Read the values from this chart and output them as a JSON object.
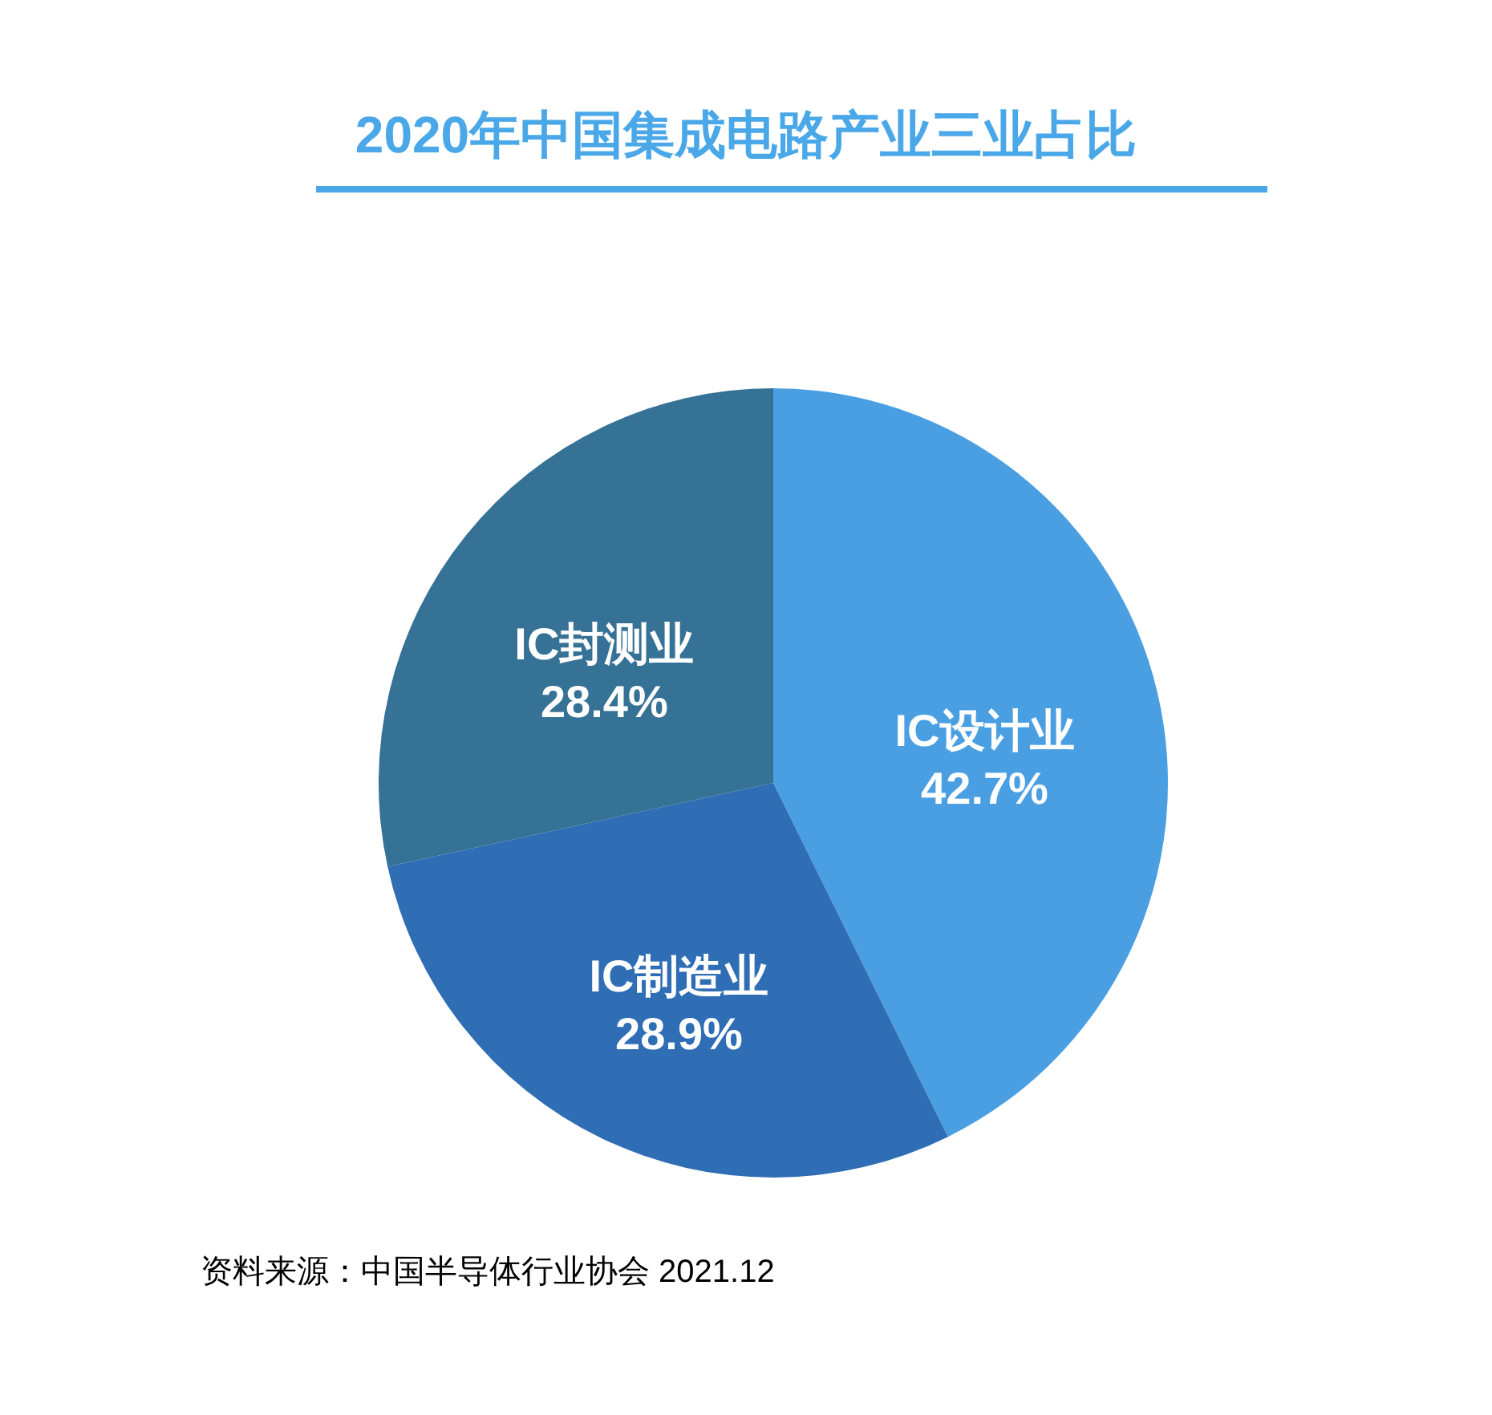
{
  "chart_data": {
    "type": "pie",
    "title": "2020年中国集成电路产业三业占比",
    "categories": [
      "IC设计业",
      "IC制造业",
      "IC封测业"
    ],
    "values": [
      42.7,
      28.9,
      28.4
    ],
    "colors": [
      "#4a9fe3",
      "#2f6db5",
      "#367196"
    ],
    "value_labels": [
      "42.7%",
      "28.9%",
      "28.4%"
    ],
    "annotations": [
      "资料来源：中国半导体行业协会 2021.12"
    ]
  }
}
